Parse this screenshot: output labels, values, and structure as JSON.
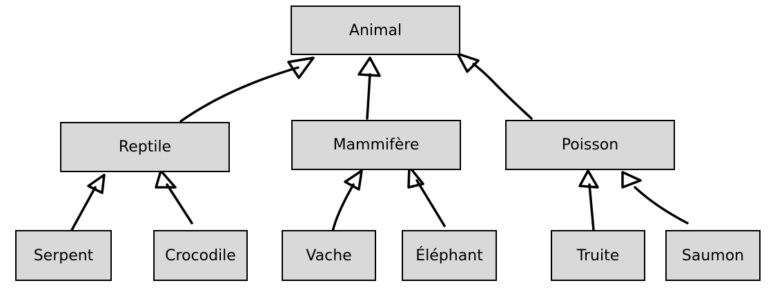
{
  "diagram": {
    "colors": {
      "node_fill": "#d9d9d9",
      "stroke": "#000000",
      "background": "#ffffff"
    },
    "nodes": {
      "animal": {
        "label": "Animal"
      },
      "reptile": {
        "label": "Reptile"
      },
      "mammifere": {
        "label": "Mammifère"
      },
      "poisson": {
        "label": "Poisson"
      },
      "serpent": {
        "label": "Serpent"
      },
      "crocodile": {
        "label": "Crocodile"
      },
      "vache": {
        "label": "Vache"
      },
      "elephant": {
        "label": "Éléphant"
      },
      "truite": {
        "label": "Truite"
      },
      "saumon": {
        "label": "Saumon"
      }
    },
    "edges": [
      {
        "from": "reptile",
        "to": "animal"
      },
      {
        "from": "mammifere",
        "to": "animal"
      },
      {
        "from": "poisson",
        "to": "animal"
      },
      {
        "from": "serpent",
        "to": "reptile"
      },
      {
        "from": "crocodile",
        "to": "reptile"
      },
      {
        "from": "vache",
        "to": "mammifere"
      },
      {
        "from": "elephant",
        "to": "mammifere"
      },
      {
        "from": "truite",
        "to": "poisson"
      },
      {
        "from": "saumon",
        "to": "poisson"
      }
    ]
  }
}
